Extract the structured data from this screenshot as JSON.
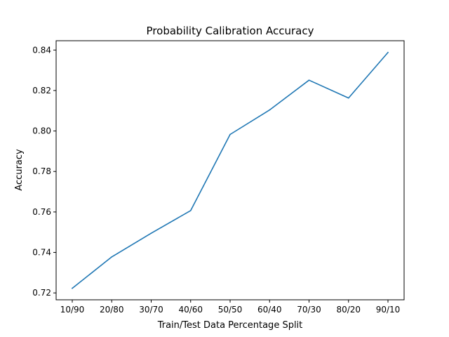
{
  "chart_data": {
    "type": "line",
    "title": "Probability Calibration Accuracy",
    "xlabel": "Train/Test Data Percentage Split",
    "ylabel": "Accuracy",
    "categories": [
      "10/90",
      "20/80",
      "30/70",
      "40/60",
      "50/50",
      "60/40",
      "70/30",
      "80/20",
      "90/10"
    ],
    "series": [
      {
        "values": [
          0.7223,
          0.7378,
          0.7495,
          0.7607,
          0.7983,
          0.8104,
          0.8251,
          0.8163,
          0.8388
        ],
        "color": "#1f77b4"
      }
    ],
    "ylim": [
      0.7166,
      0.8446
    ],
    "yticks": [
      0.72,
      0.74,
      0.76,
      0.78,
      0.8,
      0.82,
      0.84
    ],
    "ytick_labels": [
      "0.72",
      "0.74",
      "0.76",
      "0.78",
      "0.80",
      "0.82",
      "0.84"
    ],
    "grid": false,
    "legend": "none"
  }
}
